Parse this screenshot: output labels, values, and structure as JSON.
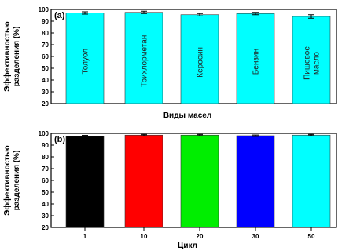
{
  "chart_data": [
    {
      "type": "bar",
      "panel_label": "(a)",
      "xlabel": "Виды масел",
      "ylabel_lines": [
        "Эффективностью",
        "разделения (%)"
      ],
      "ylim": [
        20,
        100
      ],
      "yticks": [
        20,
        30,
        40,
        50,
        60,
        70,
        80,
        90,
        100
      ],
      "categories": [
        "Толуол",
        "Трихлорметан",
        "Керосин",
        "Бензин",
        "Пищевое масло"
      ],
      "category_label_lines": [
        [
          "Толуол"
        ],
        [
          "Трихлорметан"
        ],
        [
          "Керосин"
        ],
        [
          "Бензин"
        ],
        [
          "Пищевое",
          "масло"
        ]
      ],
      "values": [
        97,
        97.5,
        95.5,
        96.5,
        94
      ],
      "errors": [
        1,
        1,
        1,
        1,
        1.5
      ],
      "colors": [
        "#00ffff",
        "#00ffff",
        "#00ffff",
        "#00ffff",
        "#00ffff"
      ],
      "show_category_ticks": false,
      "grid": false
    },
    {
      "type": "bar",
      "panel_label": "(b)",
      "xlabel": "Цикл",
      "ylabel_lines": [
        "Эффективностью",
        "разделения (%)"
      ],
      "ylim": [
        20,
        100
      ],
      "yticks": [
        20,
        30,
        40,
        50,
        60,
        70,
        80,
        90,
        100
      ],
      "categories": [
        "1",
        "10",
        "20",
        "30",
        "50"
      ],
      "values": [
        97.5,
        98.5,
        98.5,
        98,
        98.5
      ],
      "errors": [
        0.8,
        0.6,
        0.6,
        0.6,
        0.6
      ],
      "colors": [
        "#000000",
        "#ff0000",
        "#00ee00",
        "#0000ff",
        "#00ffff"
      ],
      "show_category_ticks": true,
      "grid": false
    }
  ]
}
